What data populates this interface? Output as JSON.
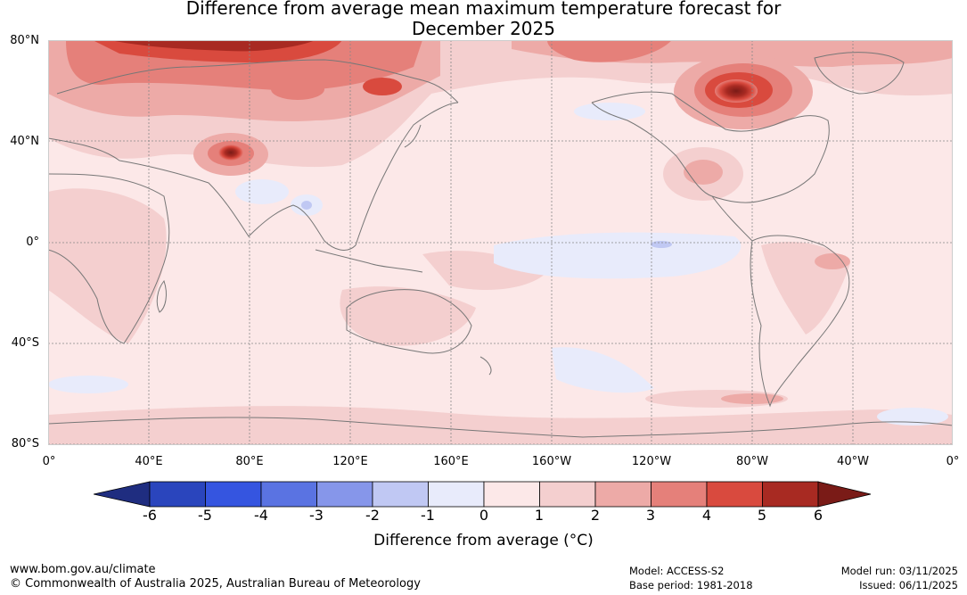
{
  "title_line1": "Difference from average mean maximum temperature forecast for",
  "title_line2": "December 2025",
  "lat_labels": [
    "80°N",
    "40°N",
    "0°",
    "40°S",
    "80°S"
  ],
  "lon_labels": [
    "0°",
    "40°E",
    "80°E",
    "120°E",
    "160°E",
    "160°W",
    "120°W",
    "80°W",
    "40°W",
    "0°"
  ],
  "colorbar": {
    "title": "Difference from average (°C)",
    "ticks": [
      "-6",
      "-5",
      "-4",
      "-3",
      "-2",
      "-1",
      "0",
      "1",
      "2",
      "3",
      "4",
      "5",
      "6"
    ],
    "colors": [
      "#1f2d80",
      "#2a45bd",
      "#3555e0",
      "#5a73e2",
      "#8696ea",
      "#c0c8f3",
      "#e8ebfb",
      "#fce8e8",
      "#f4cfcf",
      "#edaaa7",
      "#e5807a",
      "#d94a3e",
      "#a82a22",
      "#7a1b17"
    ]
  },
  "footer": {
    "website": "www.bom.gov.au/climate",
    "copyright": "© Commonwealth of Australia 2025, Australian Bureau of Meteorology",
    "model": "Model: ACCESS-S2",
    "base_period": "Base period: 1981-2018",
    "model_run": "Model run: 03/11/2025",
    "issued": "Issued: 06/11/2025"
  }
}
